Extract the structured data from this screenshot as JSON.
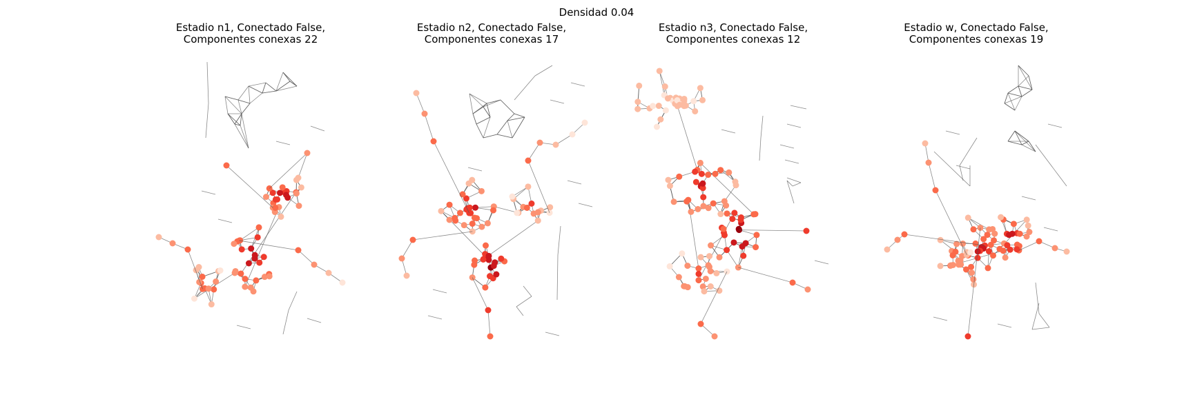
{
  "figure": {
    "suptitle": "Densidad 0.04"
  },
  "panels": [
    {
      "title_line1": "Estadio n1, Conectado False,",
      "title_line2": "Componentes conexas 22"
    },
    {
      "title_line1": "Estadio n2, Conectado False,",
      "title_line2": "Componentes conexas 17"
    },
    {
      "title_line1": "Estadio n3, Conectado False,",
      "title_line2": "Componentes conexas 12"
    },
    {
      "title_line1": "Estadio w, Conectado False,",
      "title_line2": "Componentes conexas 19"
    }
  ],
  "colors": {
    "edge": "#555555",
    "node_palette": [
      "#fee5d9",
      "#fcbba1",
      "#fc9272",
      "#fb6a4a",
      "#ef3b2c",
      "#cb181d",
      "#99000d"
    ]
  }
}
